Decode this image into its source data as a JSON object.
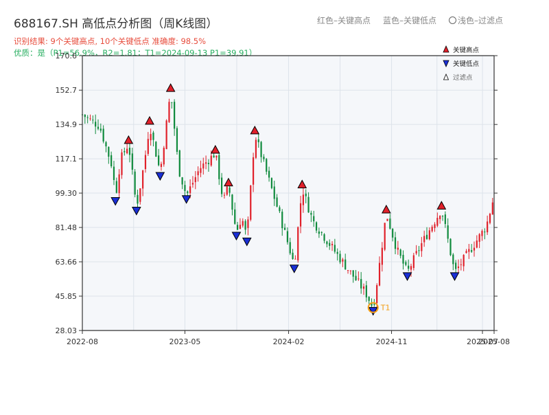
{
  "header": {
    "title": "688167.SH 高低点分析图（周K线图）",
    "result": "识别结果: 9个关键高点, 10个关键低点   准确度: 98.5%",
    "quality": "优质：是（P1=56.9%，R2=1.81；T1=2024-09-13 P1=39.91）",
    "legend_red": "红色–关键高点",
    "legend_blue": "蓝色–关键低点",
    "legend_light": "浅色–过滤点"
  },
  "colors": {
    "up": "#e0202a",
    "down": "#0f8a3c",
    "high_marker": "#e0202a",
    "low_marker": "#1a2fd6",
    "t1": "#f39c12",
    "plot_bg": "#f5f7fa",
    "grid": "#dde3ea"
  },
  "chart_data": {
    "type": "candlestick",
    "title": "688167.SH 高低点分析图（周K线图）",
    "y_ticks": [
      "28.03",
      "45.85",
      "63.66",
      "81.48",
      "99.30",
      "117.1",
      "134.9",
      "152.7",
      "170.6"
    ],
    "ylim": [
      28.03,
      170.6
    ],
    "x_ticks": [
      {
        "label": "2022-08",
        "date": "2022-08-01"
      },
      {
        "label": "2023-05",
        "date": "2023-05-01"
      },
      {
        "label": "2024-02",
        "date": "2024-02-01"
      },
      {
        "label": "2024-11",
        "date": "2024-11-01"
      },
      {
        "label": "2025-07",
        "date": "2025-07-01"
      },
      {
        "label": "2025-08",
        "date": "2025-08-01"
      }
    ],
    "xlim": [
      "2022-08-01",
      "2025-08-01"
    ],
    "legend": [
      "关键高点",
      "关键低点",
      "过滤点"
    ],
    "legend_position": "top-right",
    "grid": true,
    "key_highs": [
      {
        "date": "2022-12-02",
        "value": 125
      },
      {
        "date": "2023-01-27",
        "value": 135
      },
      {
        "date": "2023-03-24",
        "value": 152
      },
      {
        "date": "2023-07-21",
        "value": 120
      },
      {
        "date": "2023-08-25",
        "value": 103
      },
      {
        "date": "2023-11-03",
        "value": 130
      },
      {
        "date": "2024-03-08",
        "value": 102
      },
      {
        "date": "2024-10-18",
        "value": 89
      },
      {
        "date": "2025-03-14",
        "value": 91
      }
    ],
    "key_lows": [
      {
        "date": "2022-10-28",
        "value": 97
      },
      {
        "date": "2022-12-23",
        "value": 92
      },
      {
        "date": "2023-02-24",
        "value": 110
      },
      {
        "date": "2023-05-05",
        "value": 98
      },
      {
        "date": "2023-09-15",
        "value": 79
      },
      {
        "date": "2023-10-13",
        "value": 76
      },
      {
        "date": "2024-02-16",
        "value": 62
      },
      {
        "date": "2024-09-13",
        "value": 40
      },
      {
        "date": "2024-12-13",
        "value": 58
      },
      {
        "date": "2025-04-18",
        "value": 58
      }
    ],
    "t1": {
      "label": "T1",
      "date": "2024-09-13",
      "value": 39.91
    },
    "path": [
      [
        "2022-08-01",
        140
      ],
      [
        "2022-09-16",
        134
      ],
      [
        "2022-10-21",
        112
      ],
      [
        "2022-10-28",
        97
      ],
      [
        "2022-11-11",
        117
      ],
      [
        "2022-12-02",
        125
      ],
      [
        "2022-12-23",
        92
      ],
      [
        "2023-01-13",
        115
      ],
      [
        "2023-01-27",
        135
      ],
      [
        "2023-02-24",
        110
      ],
      [
        "2023-03-24",
        152
      ],
      [
        "2023-04-14",
        112
      ],
      [
        "2023-05-05",
        98
      ],
      [
        "2023-06-09",
        112
      ],
      [
        "2023-07-21",
        120
      ],
      [
        "2023-08-11",
        95
      ],
      [
        "2023-08-25",
        103
      ],
      [
        "2023-09-15",
        79
      ],
      [
        "2023-09-29",
        87
      ],
      [
        "2023-10-13",
        76
      ],
      [
        "2023-11-03",
        130
      ],
      [
        "2023-12-01",
        112
      ],
      [
        "2024-01-05",
        90
      ],
      [
        "2024-02-16",
        62
      ],
      [
        "2024-03-08",
        102
      ],
      [
        "2024-04-05",
        85
      ],
      [
        "2024-06-07",
        68
      ],
      [
        "2024-07-19",
        57
      ],
      [
        "2024-08-23",
        48
      ],
      [
        "2024-09-13",
        40
      ],
      [
        "2024-09-27",
        58
      ],
      [
        "2024-10-18",
        89
      ],
      [
        "2024-11-15",
        70
      ],
      [
        "2024-12-13",
        58
      ],
      [
        "2025-01-17",
        72
      ],
      [
        "2025-03-14",
        91
      ],
      [
        "2025-04-18",
        58
      ],
      [
        "2025-05-30",
        70
      ],
      [
        "2025-07-11",
        82
      ],
      [
        "2025-08-01",
        98
      ]
    ]
  }
}
